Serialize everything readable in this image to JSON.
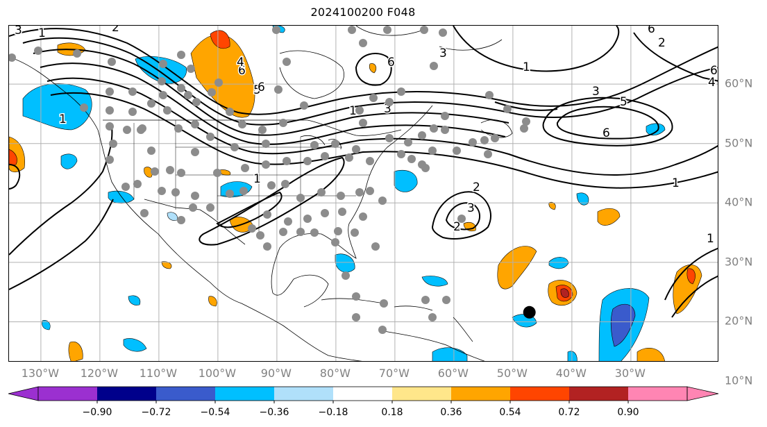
{
  "title": "2024100200 F048",
  "lon_labels": [
    "130°W",
    "120°W",
    "110°W",
    "100°W",
    "90°W",
    "80°W",
    "70°W",
    "60°W",
    "50°W",
    "40°W",
    "30°W"
  ],
  "lat_labels": [
    "60°N",
    "50°N",
    "40°N",
    "30°N",
    "20°N",
    "10°N"
  ],
  "contour_labels": [
    "3",
    "1",
    "2",
    "6",
    "4",
    "5",
    "6",
    "3",
    "1",
    "3",
    "1",
    "1",
    "2",
    "3",
    "6",
    "6",
    "2",
    "1",
    "6",
    "4",
    "3",
    "5",
    "6",
    "1",
    "1",
    "2"
  ],
  "colorbar": {
    "ticks": [
      "−0.90",
      "−0.72",
      "−0.54",
      "−0.36",
      "−0.18",
      "0.18",
      "0.36",
      "0.54",
      "0.72",
      "0.90"
    ],
    "colors": [
      "#9b30d0",
      "#00008b",
      "#3a5bcc",
      "#00bfff",
      "#b0e0fa",
      "#ffffff",
      "#ffe68a",
      "#ffa500",
      "#ff4500",
      "#b22222",
      "#ff85b3"
    ],
    "under_color": "#9b30d0",
    "over_color": "#ff85b3"
  },
  "storm_marker": {
    "lon": -47.2,
    "lat": 21.6,
    "color": "#000000"
  }
}
